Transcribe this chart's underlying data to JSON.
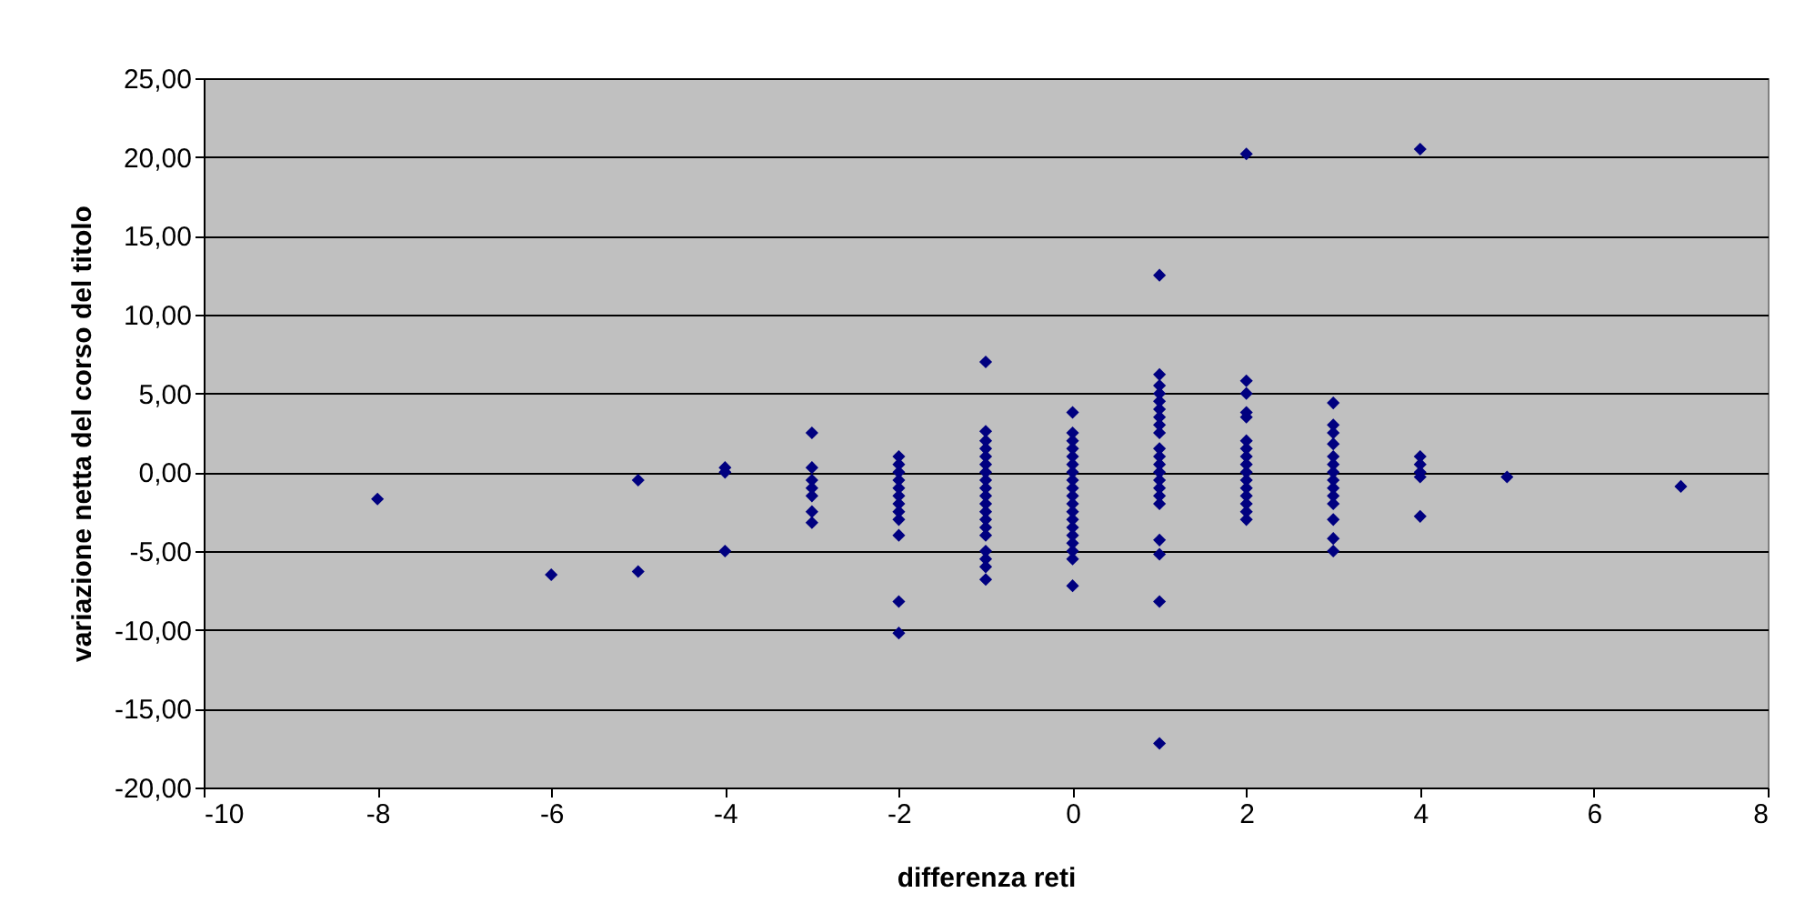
{
  "chart_data": {
    "type": "scatter",
    "xlabel": "differenza reti",
    "ylabel": "variazione netta del corso del titolo",
    "x": [
      -8,
      -6,
      -5,
      -5,
      -4,
      -4,
      -4,
      -3,
      -3,
      -3,
      -3,
      -3,
      -3,
      -3,
      -2,
      -2,
      -2,
      -2,
      -2,
      -2,
      -2,
      -2,
      -2,
      -2,
      -2,
      -2,
      -1,
      -1,
      -1,
      -1,
      -1,
      -1,
      -1,
      -1,
      -1,
      -1,
      -1,
      -1,
      -1,
      -1,
      -1,
      -1,
      -1,
      -1,
      -1,
      0,
      0,
      0,
      0,
      0,
      0,
      0,
      0,
      0,
      0,
      0,
      0,
      0,
      0,
      0,
      0,
      0,
      0,
      0,
      1,
      1,
      1,
      1,
      1,
      1,
      1,
      1,
      1,
      1,
      1,
      1,
      1,
      1,
      1,
      1,
      1,
      1,
      1,
      1,
      1,
      2,
      2,
      2,
      2,
      2,
      2,
      2,
      2,
      2,
      2,
      2,
      2,
      2,
      2,
      2,
      2,
      3,
      3,
      3,
      3,
      3,
      3,
      3,
      3,
      3,
      3,
      3,
      3,
      3,
      3,
      4,
      4,
      4,
      4,
      4,
      4,
      5,
      7
    ],
    "series": [
      {
        "color": "#000080",
        "values": [
          -1.7,
          -6.5,
          -0.5,
          -6.3,
          0.3,
          0,
          -5,
          2.5,
          0.3,
          -0.5,
          -1,
          -1.5,
          -2.5,
          -3.2,
          1,
          0.5,
          0,
          -0.5,
          -1,
          -1.5,
          -2,
          -2.5,
          -3,
          -4,
          -8.2,
          -10.2,
          7,
          2.6,
          2,
          1.5,
          1,
          0.5,
          0,
          -0.5,
          -1,
          -1.5,
          -2,
          -2.5,
          -3,
          -3.5,
          -4,
          -5,
          -5.5,
          -6,
          -6.8,
          3.8,
          2.5,
          2,
          1.5,
          1,
          0.5,
          0,
          -0.5,
          -1,
          -1.5,
          -2,
          -2.5,
          -3,
          -3.5,
          -4,
          -4.5,
          -5,
          -5.5,
          -7.2,
          12.5,
          6.2,
          5.5,
          5,
          4.5,
          4,
          3.5,
          3,
          2.5,
          1.5,
          1,
          0.5,
          0,
          -0.5,
          -1,
          -1.5,
          -2,
          -4.3,
          -5.2,
          -8.2,
          -17.2,
          20.2,
          5.8,
          5,
          3.8,
          3.5,
          2,
          1.5,
          1,
          0.5,
          0,
          -0.5,
          -1,
          -1.5,
          -2,
          -2.5,
          -3,
          4.4,
          3,
          2.5,
          1.8,
          1,
          0.5,
          0,
          -0.5,
          -1,
          -1.5,
          -2,
          -3,
          -4.2,
          -5,
          20.5,
          1,
          0.5,
          0,
          -0.3,
          -2.8,
          -0.3,
          -0.9
        ]
      }
    ],
    "xlim": [
      -10,
      8
    ],
    "xticks": [
      -10,
      -8,
      -6,
      -4,
      -2,
      0,
      2,
      4,
      6,
      8
    ],
    "ylim": [
      -20,
      25
    ],
    "yticks": [
      {
        "value": -20,
        "label": "-20,00"
      },
      {
        "value": -15,
        "label": "-15,00"
      },
      {
        "value": -10,
        "label": "-10,00"
      },
      {
        "value": -5,
        "label": "-5,00"
      },
      {
        "value": 0,
        "label": "0,00"
      },
      {
        "value": 5,
        "label": "5,00"
      },
      {
        "value": 10,
        "label": "10,00"
      },
      {
        "value": 15,
        "label": "15,00"
      },
      {
        "value": 20,
        "label": "20,00"
      },
      {
        "value": 25,
        "label": "25,00"
      }
    ],
    "grid": "y",
    "marker": "diamond"
  }
}
